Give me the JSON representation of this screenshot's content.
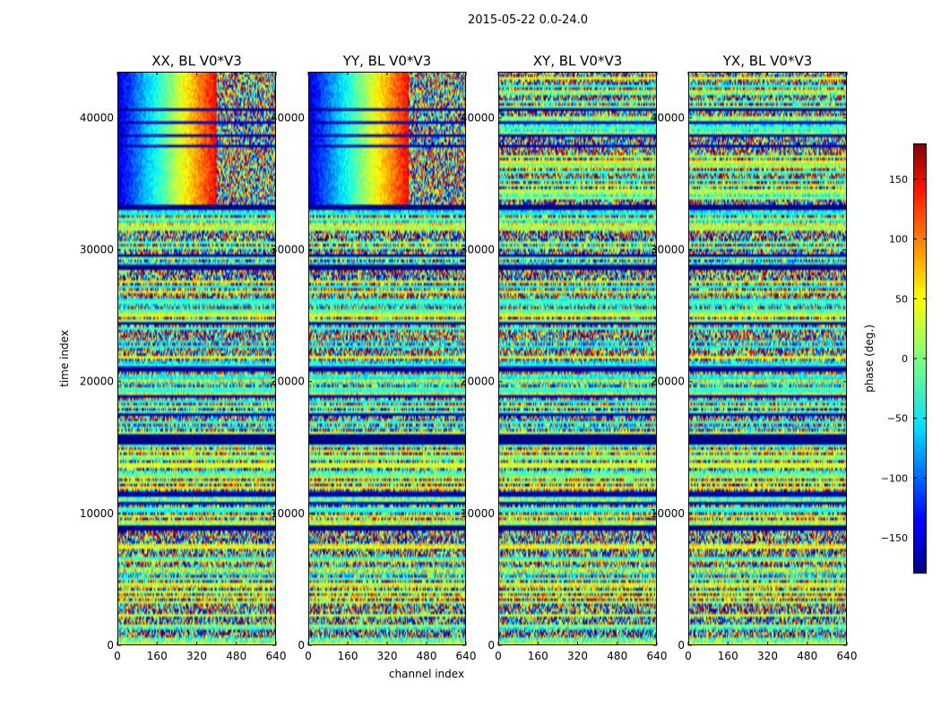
{
  "figure": {
    "title": "2015-05-22 0.0-24.0"
  },
  "chart_data": {
    "type": "heatmap",
    "title": "2015-05-22 0.0-24.0",
    "xlabel": "channel index",
    "ylabel": "time index",
    "xlim": [
      0,
      640
    ],
    "ylim": [
      0,
      43500
    ],
    "x_ticks": [
      0,
      160,
      320,
      480,
      640
    ],
    "y_ticks": [
      0,
      10000,
      20000,
      30000,
      40000
    ],
    "panels": [
      {
        "title": "XX, BL V0*V3",
        "signal": "gradient",
        "split_channel": 400
      },
      {
        "title": "YY, BL V0*V3",
        "signal": "gradient",
        "split_channel": 410
      },
      {
        "title": "XY, BL V0*V3",
        "signal": "noise",
        "split_channel": null
      },
      {
        "title": "YX, BL V0*V3",
        "signal": "noise",
        "split_channel": null
      }
    ],
    "gradient_time_range": [
      33000,
      43500
    ],
    "flagged_time_bands": [
      [
        15200,
        16100
      ],
      [
        28400,
        28900
      ],
      [
        8700,
        9000
      ],
      [
        20700,
        21000
      ],
      [
        33000,
        33400
      ],
      [
        40600,
        40800
      ]
    ],
    "colorbar": {
      "label": "phase (deg.)",
      "colormap": "jet",
      "range": [
        -180,
        180
      ],
      "ticks": [
        -150,
        -100,
        -50,
        0,
        50,
        100,
        150
      ],
      "tick_labels": [
        "−150",
        "−100",
        "−50",
        "0",
        "50",
        "100",
        "150"
      ]
    }
  }
}
